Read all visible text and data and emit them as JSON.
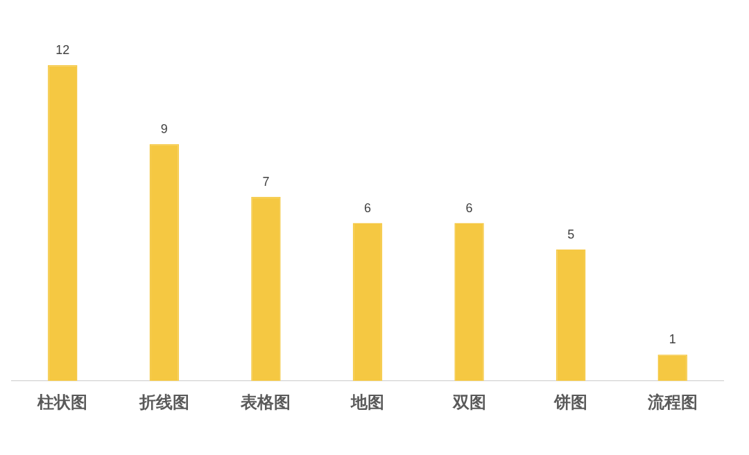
{
  "chart_data": {
    "type": "bar",
    "categories": [
      "柱状图",
      "折线图",
      "表格图",
      "地图",
      "双图",
      "饼图",
      "流程图"
    ],
    "values": [
      12,
      9,
      7,
      6,
      6,
      5,
      1
    ],
    "color": "#f5c842",
    "data_labels": true,
    "tick_labels": "x"
  }
}
